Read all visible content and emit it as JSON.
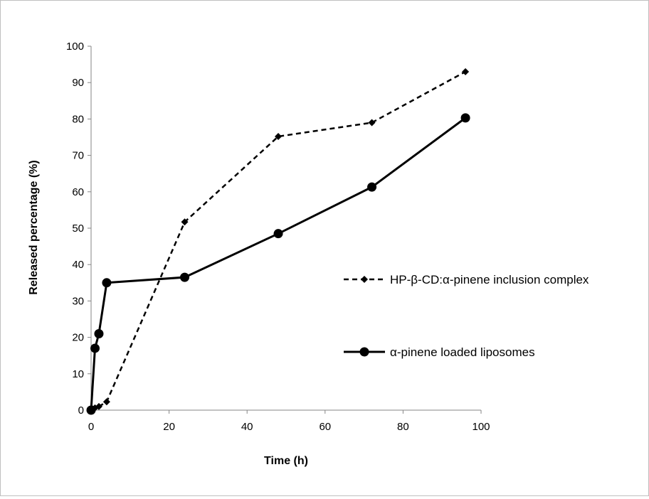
{
  "chart_data": {
    "type": "line",
    "xlabel": "Time (h)",
    "ylabel": "Released percentage (%)",
    "xlim": [
      0,
      100
    ],
    "ylim": [
      0,
      100
    ],
    "x_ticks": [
      0,
      20,
      40,
      60,
      80,
      100
    ],
    "y_ticks": [
      0,
      10,
      20,
      30,
      40,
      50,
      60,
      70,
      80,
      90,
      100
    ],
    "grid": false,
    "legend_position": "right",
    "series": [
      {
        "name": "HP-β-CD:α-pinene inclusion complex",
        "line_style": "dashed",
        "marker": "diamond",
        "color": "#000000",
        "points": [
          [
            0,
            0
          ],
          [
            0.5,
            0.3
          ],
          [
            1,
            0.6
          ],
          [
            2,
            1.0
          ],
          [
            4,
            2.3
          ],
          [
            24,
            51.7
          ],
          [
            48,
            75.2
          ],
          [
            72,
            79.0
          ],
          [
            96,
            93.0
          ]
        ]
      },
      {
        "name": "α-pinene loaded liposomes",
        "line_style": "solid",
        "marker": "circle",
        "color": "#000000",
        "points": [
          [
            0,
            0
          ],
          [
            1,
            17.0
          ],
          [
            2,
            21.0
          ],
          [
            4,
            35.0
          ],
          [
            24,
            36.5
          ],
          [
            48,
            48.5
          ],
          [
            72,
            61.3
          ],
          [
            96,
            80.3
          ]
        ]
      }
    ]
  }
}
